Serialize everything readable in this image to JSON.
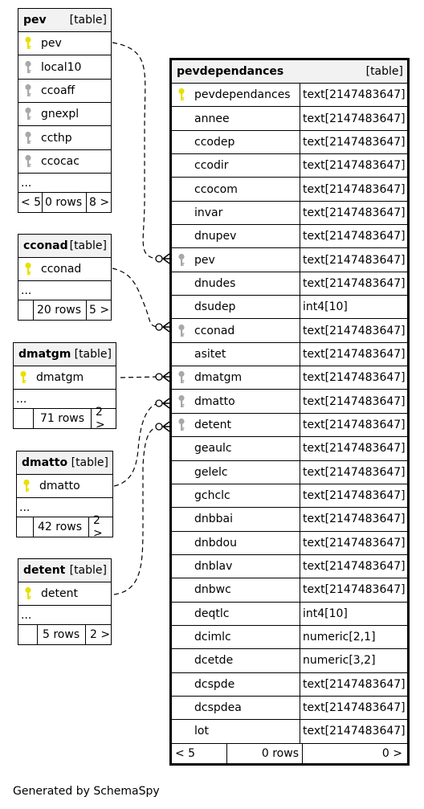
{
  "tables": {
    "pev": {
      "name": "pev",
      "type": "[table]",
      "columns": [
        {
          "name": "pev",
          "key": "primary"
        },
        {
          "name": "local10",
          "key": "index"
        },
        {
          "name": "ccoaff",
          "key": "index"
        },
        {
          "name": "gnexpl",
          "key": "index"
        },
        {
          "name": "ccthp",
          "key": "index"
        },
        {
          "name": "ccocac",
          "key": "index"
        }
      ],
      "more": "...",
      "footer": {
        "parents": "< 5",
        "rows": "0 rows",
        "children": "8 >"
      }
    },
    "cconad": {
      "name": "cconad",
      "type": "[table]",
      "columns": [
        {
          "name": "cconad",
          "key": "primary"
        }
      ],
      "more": "...",
      "footer": {
        "parents": "",
        "rows": "20 rows",
        "children": "5 >"
      }
    },
    "dmatgm": {
      "name": "dmatgm",
      "type": "[table]",
      "columns": [
        {
          "name": "dmatgm",
          "key": "primary"
        }
      ],
      "more": "...",
      "footer": {
        "parents": "",
        "rows": "71 rows",
        "children": "2 >"
      }
    },
    "dmatto": {
      "name": "dmatto",
      "type": "[table]",
      "columns": [
        {
          "name": "dmatto",
          "key": "primary"
        }
      ],
      "more": "...",
      "footer": {
        "parents": "",
        "rows": "42 rows",
        "children": "2 >"
      }
    },
    "detent": {
      "name": "detent",
      "type": "[table]",
      "columns": [
        {
          "name": "detent",
          "key": "primary"
        }
      ],
      "more": "...",
      "footer": {
        "parents": "",
        "rows": "5 rows",
        "children": "2 >"
      }
    },
    "pevdependances": {
      "name": "pevdependances",
      "type": "[table]",
      "columns": [
        {
          "name": "pevdependances",
          "type": "text[2147483647]",
          "key": "primary"
        },
        {
          "name": "annee",
          "type": "text[2147483647]",
          "key": ""
        },
        {
          "name": "ccodep",
          "type": "text[2147483647]",
          "key": ""
        },
        {
          "name": "ccodir",
          "type": "text[2147483647]",
          "key": ""
        },
        {
          "name": "ccocom",
          "type": "text[2147483647]",
          "key": ""
        },
        {
          "name": "invar",
          "type": "text[2147483647]",
          "key": ""
        },
        {
          "name": "dnupev",
          "type": "text[2147483647]",
          "key": ""
        },
        {
          "name": "pev",
          "type": "text[2147483647]",
          "key": "index"
        },
        {
          "name": "dnudes",
          "type": "text[2147483647]",
          "key": ""
        },
        {
          "name": "dsudep",
          "type": "int4[10]",
          "key": ""
        },
        {
          "name": "cconad",
          "type": "text[2147483647]",
          "key": "index"
        },
        {
          "name": "asitet",
          "type": "text[2147483647]",
          "key": ""
        },
        {
          "name": "dmatgm",
          "type": "text[2147483647]",
          "key": "index"
        },
        {
          "name": "dmatto",
          "type": "text[2147483647]",
          "key": "index"
        },
        {
          "name": "detent",
          "type": "text[2147483647]",
          "key": "index"
        },
        {
          "name": "geaulc",
          "type": "text[2147483647]",
          "key": ""
        },
        {
          "name": "gelelc",
          "type": "text[2147483647]",
          "key": ""
        },
        {
          "name": "gchclc",
          "type": "text[2147483647]",
          "key": ""
        },
        {
          "name": "dnbbai",
          "type": "text[2147483647]",
          "key": ""
        },
        {
          "name": "dnbdou",
          "type": "text[2147483647]",
          "key": ""
        },
        {
          "name": "dnblav",
          "type": "text[2147483647]",
          "key": ""
        },
        {
          "name": "dnbwc",
          "type": "text[2147483647]",
          "key": ""
        },
        {
          "name": "deqtlc",
          "type": "int4[10]",
          "key": ""
        },
        {
          "name": "dcimlc",
          "type": "numeric[2,1]",
          "key": ""
        },
        {
          "name": "dcetde",
          "type": "numeric[3,2]",
          "key": ""
        },
        {
          "name": "dcspde",
          "type": "text[2147483647]",
          "key": ""
        },
        {
          "name": "dcspdea",
          "type": "text[2147483647]",
          "key": ""
        },
        {
          "name": "lot",
          "type": "text[2147483647]",
          "key": ""
        }
      ],
      "footer": {
        "parents": "< 5",
        "rows": "0 rows",
        "children": "0 >"
      }
    }
  },
  "colors": {
    "primary_key": "#e8e000",
    "index_key": "#a8a8a8",
    "header_bg": "#f2f2f2"
  },
  "footer_text": "Generated by SchemaSpy"
}
